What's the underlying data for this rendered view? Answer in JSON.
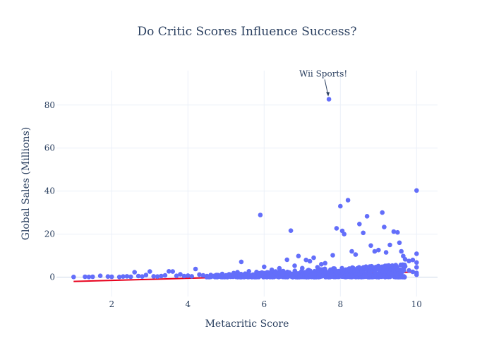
{
  "chart_data": {
    "type": "scatter",
    "title": "Do Critic Scores Influence Success?",
    "xlabel": "Metacritic Score",
    "ylabel": "Global Sales (Millions)",
    "xlim": [
      0.55,
      10.55
    ],
    "ylim": [
      -9,
      96
    ],
    "x_ticks": [
      2,
      4,
      6,
      8,
      10
    ],
    "y_ticks": [
      0,
      20,
      40,
      60,
      80
    ],
    "grid": true,
    "legend": "none",
    "colors": {
      "points": "#636efa",
      "trendline": "#e8001c",
      "grid": "#ebf0f8",
      "text": "#2a3f5f"
    },
    "series": [
      {
        "type": "scatter",
        "points": [
          [
            1.0,
            0.1
          ],
          [
            1.3,
            0.2
          ],
          [
            1.4,
            0.1
          ],
          [
            1.5,
            0.2
          ],
          [
            1.7,
            0.6
          ],
          [
            1.9,
            0.3
          ],
          [
            2.0,
            0.2
          ],
          [
            2.2,
            0.1
          ],
          [
            2.3,
            0.3
          ],
          [
            2.4,
            0.4
          ],
          [
            2.5,
            0.2
          ],
          [
            2.6,
            2.3
          ],
          [
            2.7,
            0.5
          ],
          [
            2.8,
            0.3
          ],
          [
            2.9,
            1.0
          ],
          [
            3.0,
            2.6
          ],
          [
            3.1,
            0.4
          ],
          [
            3.2,
            0.3
          ],
          [
            3.3,
            0.5
          ],
          [
            3.4,
            0.8
          ],
          [
            3.5,
            2.7
          ],
          [
            3.6,
            2.6
          ],
          [
            3.7,
            0.6
          ],
          [
            3.8,
            1.3
          ],
          [
            3.9,
            0.5
          ],
          [
            4.0,
            0.7
          ],
          [
            4.1,
            0.4
          ],
          [
            4.2,
            3.8
          ],
          [
            4.3,
            1.2
          ],
          [
            4.4,
            0.8
          ],
          [
            4.5,
            0.5
          ],
          [
            4.6,
            1.0
          ],
          [
            4.7,
            0.6
          ],
          [
            4.8,
            0.9
          ],
          [
            4.9,
            1.5
          ],
          [
            5.0,
            0.8
          ],
          [
            5.1,
            1.2
          ],
          [
            5.2,
            1.9
          ],
          [
            5.3,
            2.3
          ],
          [
            5.4,
            7.1
          ],
          [
            5.5,
            1.6
          ],
          [
            5.6,
            2.7
          ],
          [
            5.7,
            1.1
          ],
          [
            5.8,
            2.4
          ],
          [
            5.9,
            28.9
          ],
          [
            6.0,
            4.8
          ],
          [
            6.1,
            2.2
          ],
          [
            6.2,
            3.4
          ],
          [
            6.3,
            2.6
          ],
          [
            6.4,
            4.1
          ],
          [
            6.5,
            2.8
          ],
          [
            6.6,
            8.1
          ],
          [
            6.7,
            21.6
          ],
          [
            6.8,
            5.3
          ],
          [
            6.9,
            9.8
          ],
          [
            7.0,
            4.2
          ],
          [
            7.1,
            8.0
          ],
          [
            7.2,
            7.4
          ],
          [
            7.3,
            9.0
          ],
          [
            7.4,
            4.6
          ],
          [
            7.5,
            6.0
          ],
          [
            7.6,
            6.5
          ],
          [
            7.7,
            82.7
          ],
          [
            7.8,
            10.2
          ],
          [
            7.9,
            22.7
          ],
          [
            8.0,
            33.0
          ],
          [
            8.05,
            21.5
          ],
          [
            8.1,
            20.0
          ],
          [
            8.2,
            35.8
          ],
          [
            8.3,
            12.0
          ],
          [
            8.4,
            10.5
          ],
          [
            8.5,
            24.7
          ],
          [
            8.6,
            20.6
          ],
          [
            8.7,
            28.3
          ],
          [
            8.8,
            14.7
          ],
          [
            8.9,
            12.0
          ],
          [
            9.0,
            12.6
          ],
          [
            9.1,
            30.0
          ],
          [
            9.15,
            23.3
          ],
          [
            9.2,
            11.5
          ],
          [
            9.3,
            15.0
          ],
          [
            9.4,
            21.2
          ],
          [
            9.5,
            20.8
          ],
          [
            9.55,
            16.0
          ],
          [
            9.6,
            12.0
          ],
          [
            9.65,
            9.8
          ],
          [
            9.7,
            8.3
          ],
          [
            9.8,
            7.5
          ],
          [
            9.9,
            8.0
          ],
          [
            10.0,
            40.3
          ],
          [
            10.0,
            10.9
          ],
          [
            10.0,
            6.8
          ],
          [
            10.0,
            4.6
          ],
          [
            10.0,
            2.0
          ],
          [
            10.0,
            1.1
          ],
          [
            9.9,
            2.5
          ],
          [
            9.8,
            3.1
          ],
          [
            9.7,
            5.0
          ],
          [
            9.6,
            2.2
          ],
          [
            9.5,
            3.6
          ]
        ],
        "dense_band": {
          "x_range": [
            4.5,
            9.7
          ],
          "y_max_at_x_start": 0.8,
          "y_max_at_x_end": 6.0
        }
      },
      {
        "type": "line",
        "points": [
          [
            1.0,
            -2.0
          ],
          [
            10.0,
            2.4
          ]
        ]
      }
    ],
    "annotations": [
      {
        "text": "Wii Sports!",
        "x": 7.7,
        "y": 82.7
      }
    ]
  }
}
